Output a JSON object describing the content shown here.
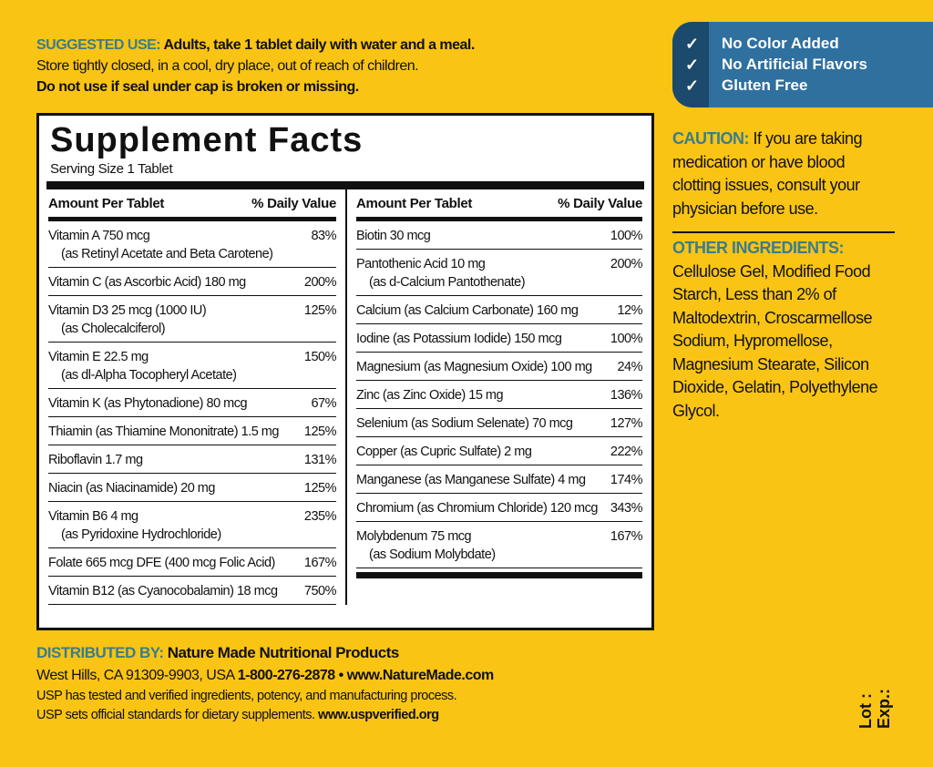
{
  "suggested_use": {
    "label": "SUGGESTED USE:",
    "text": " Adults, take 1 tablet daily with water and a meal.",
    "storage": "Store tightly closed, in a cool, dry place, out of reach of children.",
    "seal": "Do not use if seal under cap is broken or missing."
  },
  "facts": {
    "title": "Supplement Facts",
    "serving": "Serving Size 1 Tablet",
    "col_amount": "Amount Per Tablet",
    "col_dv": "% Daily Value",
    "left": [
      {
        "name": "Vitamin A 750 mcg",
        "sub": "(as Retinyl Acetate and Beta Carotene)",
        "dv": "83%"
      },
      {
        "name": "Vitamin C (as Ascorbic Acid) 180 mg",
        "dv": "200%"
      },
      {
        "name": "Vitamin D3 25 mcg (1000 IU)",
        "sub": "(as Cholecalciferol)",
        "dv": "125%"
      },
      {
        "name": "Vitamin E 22.5 mg",
        "sub": "(as dl-Alpha Tocopheryl Acetate)",
        "dv": "150%"
      },
      {
        "name": "Vitamin K (as Phytonadione) 80 mcg",
        "dv": "67%"
      },
      {
        "name": "Thiamin (as Thiamine Mononitrate) 1.5 mg",
        "dv": "125%"
      },
      {
        "name": "Riboflavin 1.7 mg",
        "dv": "131%"
      },
      {
        "name": "Niacin (as Niacinamide) 20 mg",
        "dv": "125%"
      },
      {
        "name": "Vitamin B6 4 mg",
        "sub": "(as Pyridoxine Hydrochloride)",
        "dv": "235%"
      },
      {
        "name": "Folate 665 mcg DFE (400 mcg Folic Acid)",
        "dv": "167%"
      },
      {
        "name": "Vitamin B12 (as Cyanocobalamin) 18 mcg",
        "dv": "750%"
      }
    ],
    "right": [
      {
        "name": "Biotin 30 mcg",
        "dv": "100%"
      },
      {
        "name": "Pantothenic Acid 10 mg",
        "sub": "(as d-Calcium Pantothenate)",
        "dv": "200%"
      },
      {
        "name": "Calcium (as Calcium Carbonate) 160 mg",
        "dv": "12%"
      },
      {
        "name": "Iodine (as Potassium Iodide) 150 mcg",
        "dv": "100%"
      },
      {
        "name": "Magnesium (as Magnesium Oxide) 100 mg",
        "dv": "24%"
      },
      {
        "name": "Zinc (as Zinc Oxide) 15 mg",
        "dv": "136%"
      },
      {
        "name": "Selenium (as Sodium Selenate) 70 mcg",
        "dv": "127%"
      },
      {
        "name": "Copper (as Cupric Sulfate) 2 mg",
        "dv": "222%"
      },
      {
        "name": "Manganese (as Manganese Sulfate) 4 mg",
        "dv": "174%"
      },
      {
        "name": "Chromium (as Chromium Chloride) 120 mcg",
        "dv": "343%"
      },
      {
        "name": "Molybdenum 75 mcg",
        "sub": "(as Sodium Molybdate)",
        "dv": "167%"
      }
    ]
  },
  "badges": [
    "No Color Added",
    "No Artificial Flavors",
    "Gluten Free"
  ],
  "caution": {
    "label": "CAUTION:",
    "text": " If you are taking medication or have blood clotting issues, consult your physician before use."
  },
  "ingredients": {
    "label": "OTHER INGREDIENTS:",
    "text": "Cellulose Gel, Modified Food Starch, Less than 2% of Maltodextrin, Croscarmellose Sodium, Hypromellose, Magnesium Stearate, Silicon Dioxide, Gelatin, Polyethylene Glycol."
  },
  "distributor": {
    "label": "DISTRIBUTED BY:",
    "name": " Nature Made Nutritional Products",
    "address": "West Hills, CA 91309-9903, USA ",
    "phone": "1-800-276-2878 • www.NatureMade.com",
    "usp1": "USP has tested and verified ingredients, potency, and manufacturing process.",
    "usp2": "USP sets official standards for dietary supplements. ",
    "usp_url": "www.uspverified.org"
  },
  "lot": "Lot :",
  "exp": "Exp.:",
  "colors": {
    "background": "#f9c414",
    "heading": "#3a7d8b",
    "badge": "#2f709e"
  }
}
